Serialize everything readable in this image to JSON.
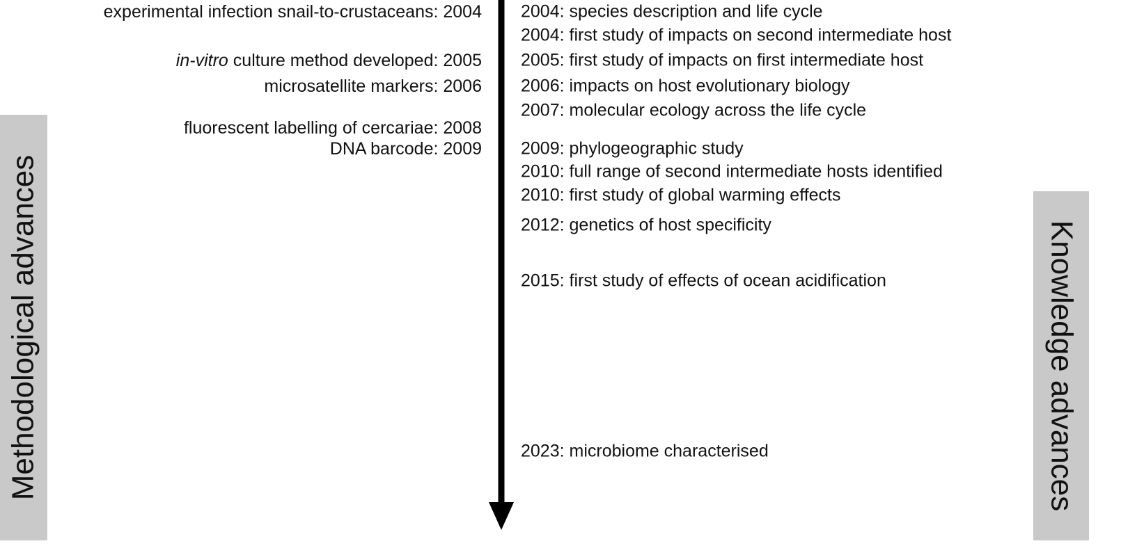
{
  "left_panel": {
    "label": "Methodological advances",
    "items": [
      {
        "text": "experimental infection snail-to-crustaceans: 2004"
      },
      {
        "italic": "in-vitro",
        "text": "culture method developed: 2005"
      },
      {
        "text": "microsatellite markers: 2006"
      },
      {
        "text": "fluorescent labelling of cercariae: 2008"
      },
      {
        "text": "DNA barcode: 2009"
      }
    ]
  },
  "right_panel": {
    "label": "Knowledge advances",
    "items": [
      "2004: species description and life cycle",
      "2004: first study of impacts on second intermediate host",
      "2005: first study of impacts on first intermediate host",
      "2006: impacts on host evolutionary biology",
      "2007: molecular ecology across the life cycle",
      "2009: phylogeographic study",
      "2010: full range of second intermediate hosts identified",
      "2010: first study of global warming effects",
      "2012: genetics of host specificity",
      "2015: first study of effects of ocean acidification",
      "2023: microbiome characterised"
    ]
  }
}
